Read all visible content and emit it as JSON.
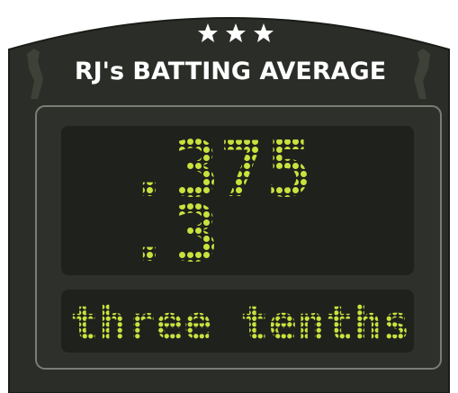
{
  "header": {
    "title": "RJ's BATTING AVERAGE"
  },
  "display": {
    "lines": [
      ".375",
      ".3"
    ],
    "caption": "three tenths"
  }
}
